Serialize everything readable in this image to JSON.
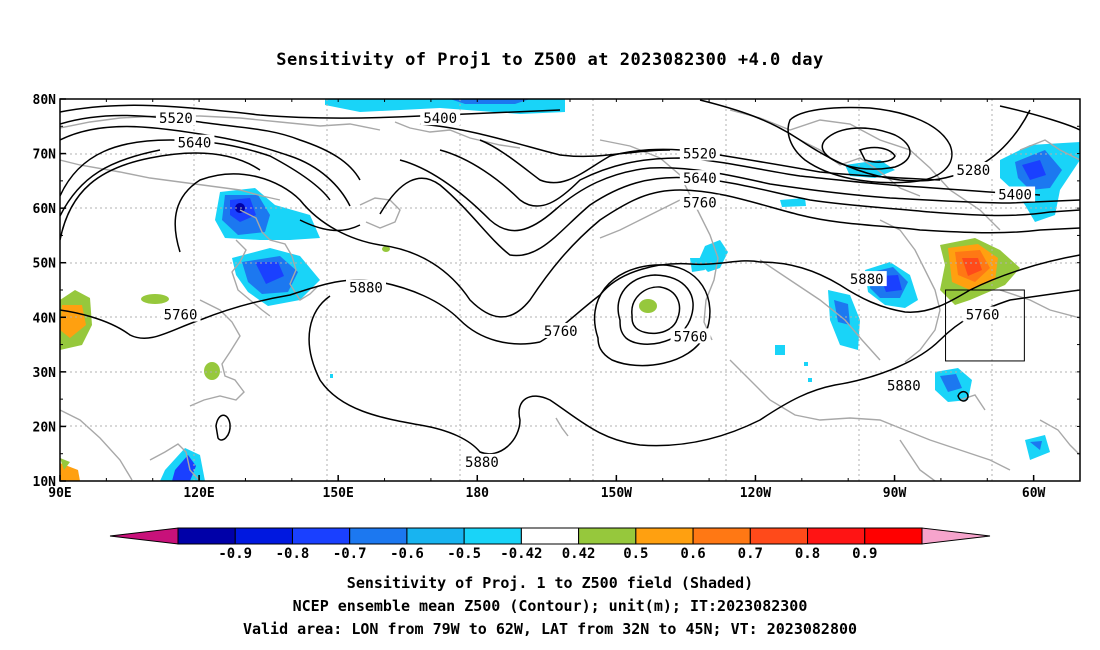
{
  "title": "Sensitivity of Proj1 to Z500 at 2023082300 +4.0 day",
  "map": {
    "lat_labels": [
      "80N",
      "70N",
      "60N",
      "50N",
      "40N",
      "30N",
      "20N",
      "10N"
    ],
    "lon_labels": [
      "90E",
      "120E",
      "150E",
      "180",
      "150W",
      "120W",
      "90W",
      "60W"
    ],
    "lon_range": [
      90,
      310
    ],
    "lat_range": [
      10,
      80
    ],
    "contour_labels": [
      {
        "text": "5520",
        "lon": 115,
        "lat": 76.5
      },
      {
        "text": "5640",
        "lon": 119,
        "lat": 72
      },
      {
        "text": "5400",
        "lon": 172,
        "lat": 76.5
      },
      {
        "text": "5520",
        "lon": 228,
        "lat": 70
      },
      {
        "text": "5640",
        "lon": 228,
        "lat": 65.5
      },
      {
        "text": "5760",
        "lon": 228,
        "lat": 61
      },
      {
        "text": "5280",
        "lon": 287,
        "lat": 67
      },
      {
        "text": "5400",
        "lon": 296,
        "lat": 62.5
      },
      {
        "text": "5760",
        "lon": 116,
        "lat": 40.5
      },
      {
        "text": "5880",
        "lon": 156,
        "lat": 45.5
      },
      {
        "text": "5760",
        "lon": 198,
        "lat": 37.5
      },
      {
        "text": "5760",
        "lon": 226,
        "lat": 36.5
      },
      {
        "text": "5880",
        "lon": 264,
        "lat": 47
      },
      {
        "text": "5760",
        "lon": 289,
        "lat": 40.5
      },
      {
        "text": "5880",
        "lon": 272,
        "lat": 27.5
      },
      {
        "text": "5880",
        "lon": 181,
        "lat": 13.5
      }
    ],
    "valid_area_box": {
      "lon_w": -79,
      "lon_e": -62,
      "lat_s": 32,
      "lat_n": 45
    }
  },
  "colorbar": {
    "colors": [
      "#c8117a",
      "#0000a8",
      "#0018e0",
      "#1a40ff",
      "#1c78f0",
      "#18b4f0",
      "#19d4f8",
      "#ffffff",
      "#96c83c",
      "#ffa010",
      "#ff7814",
      "#ff4a1a",
      "#ff1414",
      "#ff0000",
      "#f6a4cc"
    ],
    "labels": [
      "-0.9",
      "-0.8",
      "-0.7",
      "-0.6",
      "-0.5",
      "-0.42",
      "0.42",
      "0.5",
      "0.6",
      "0.7",
      "0.8",
      "0.9"
    ]
  },
  "footer": {
    "line1": "Sensitivity of Proj. 1 to Z500 field (Shaded)",
    "line2": "NCEP ensemble mean Z500 (Contour); unit(m); IT:2023082300",
    "line3": "Valid area: LON from 79W to 62W, LAT from 32N to 45N; VT: 2023082800"
  }
}
